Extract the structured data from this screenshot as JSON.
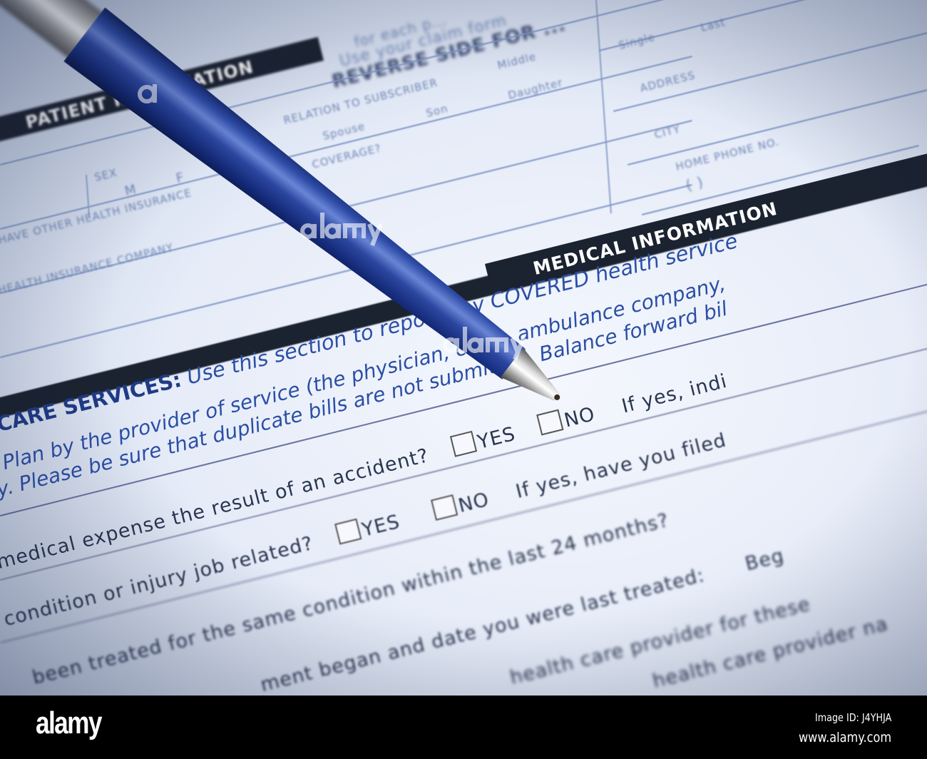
{
  "form": {
    "top_text_1": "for each p...",
    "top_text_2": "Use your claim form",
    "top_heading": "REVERSE SIDE FOR ...",
    "patient_band": "PATIENT INFORMATION",
    "label_middle": "Middle",
    "label_single": "Single",
    "label_last": "Last",
    "label_address": "ADDRESS",
    "label_city": "CITY",
    "label_home_phone": "HOME PHONE NO.",
    "phone_parens": "(            )",
    "label_relation": "RELATION TO SUBSCRIBER",
    "opt_spouse": "Spouse",
    "opt_son": "Son",
    "opt_daughter": "Daughter",
    "label_coverage": "COVERAGE?",
    "label_sex": "SEX",
    "opt_m": "M",
    "opt_f": "F",
    "label_other_insurance": "HAVE OTHER HEALTH INSURANCE",
    "label_insurance_company": "HEALTH INSURANCE COMPANY",
    "medical_band": "MEDICAL INFORMATION",
    "section_title": "CARE SERVICES:",
    "section_line_1": "Use this section to report any COVERED health service",
    "section_line_2": "Plan by the provider of service (the physician, clinic, ambulance company,",
    "section_line_3": "y. Please be sure that duplicate bills are not submitted. Balance forward bil",
    "q1": "medical expense the result of an accident?",
    "q2": "condition or injury job related?",
    "q3": "been treated for the same condition within the last 24 months?",
    "q4": "ment began and date you were last treated:",
    "q4_tail": "Beg",
    "q5": "health care provider for these",
    "q6": "health care provider na",
    "yes": "YES",
    "no": "NO",
    "if_yes_1": "If yes, indi",
    "if_yes_2": "If yes, have you filed"
  },
  "watermark": "alamy",
  "footer": {
    "logo": "alamy",
    "image_id": "Image ID: J4YHJA",
    "url": "www.alamy.com"
  },
  "colors": {
    "paper": "#e8eef8",
    "pen_blue": "#2f4da8",
    "band": "#1b2230",
    "form_text_blue": "#2b4fa6"
  }
}
